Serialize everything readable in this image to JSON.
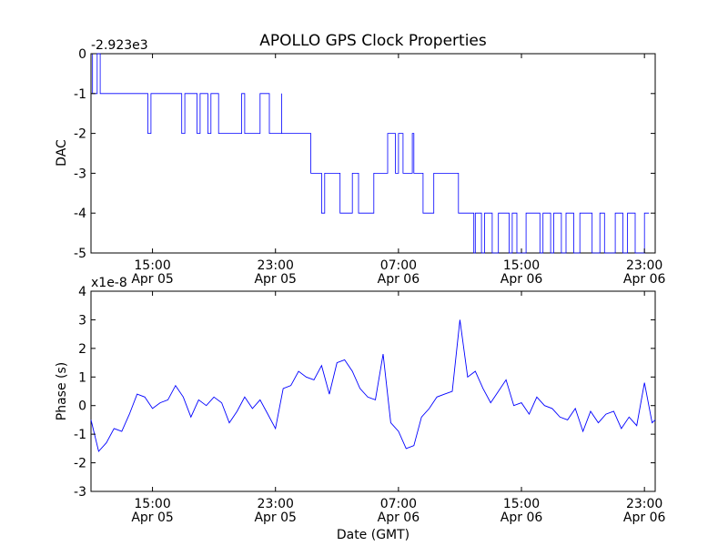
{
  "figure": {
    "title": "APOLLO GPS Clock Properties",
    "colors": {
      "line": "#0000ff",
      "axes": "#000000",
      "background": "#ffffff"
    }
  },
  "chart_data": [
    {
      "type": "line",
      "ylabel": "DAC",
      "offset_label": "-2.923e3",
      "xlabel": "",
      "xlim": [
        "Apr 05 11:00",
        "Apr 06 23:40"
      ],
      "ylim": [
        -5,
        0
      ],
      "yticks": [
        0,
        -1,
        -2,
        -3,
        -4,
        -5
      ],
      "xticks": [
        {
          "time": "15:00",
          "date": "Apr 05"
        },
        {
          "time": "23:00",
          "date": "Apr 05"
        },
        {
          "time": "07:00",
          "date": "Apr 06"
        },
        {
          "time": "15:00",
          "date": "Apr 06"
        },
        {
          "time": "23:00",
          "date": "Apr 06"
        }
      ],
      "grid": false,
      "series": [
        {
          "x_hours_from_apr05_00": [
            11.0,
            11.1,
            11.1,
            11.4,
            11.4,
            11.6,
            11.6,
            12.2,
            12.2,
            14.7,
            14.7,
            14.9,
            14.9,
            16.9,
            16.9,
            17.1,
            17.1,
            17.9,
            17.9,
            18.1,
            18.1,
            18.6,
            18.6,
            18.8,
            18.8,
            19.3,
            19.3,
            20.8,
            20.8,
            21.0,
            21.0,
            22.0,
            22.0,
            22.6,
            22.6,
            23.4,
            23.4,
            23.4,
            23.4,
            25.3,
            25.3,
            25.4,
            25.4,
            26.0,
            26.0,
            26.2,
            26.2,
            27.2,
            27.2,
            28.0,
            28.0,
            28.4,
            28.4,
            29.4,
            29.4,
            30.3,
            30.3,
            30.8,
            30.8,
            31.0,
            31.0,
            31.3,
            31.3,
            31.9,
            31.9,
            32.0,
            32.0,
            32.6,
            32.6,
            33.3,
            33.3,
            34.9,
            34.9,
            35.9,
            35.9,
            36.0,
            36.0,
            36.4,
            36.4,
            36.6,
            36.6,
            37.1,
            37.1,
            37.5,
            37.5,
            38.2,
            38.2,
            38.4,
            38.4,
            38.7,
            38.7,
            39.3,
            39.3,
            40.2,
            40.2,
            40.4,
            40.4,
            40.9,
            40.9,
            41.1,
            41.1,
            41.6,
            41.6,
            41.9,
            41.9,
            42.4,
            42.4,
            42.8,
            42.8,
            43.6,
            43.6,
            44.1,
            44.1,
            44.4,
            44.4,
            45.1,
            45.1,
            45.6,
            45.6,
            45.9,
            45.9,
            46.4,
            46.4,
            47.0,
            47.0,
            47.3,
            47.3,
            47.7
          ],
          "values": [
            0,
            0,
            -1,
            -1,
            0,
            0,
            -1,
            -1,
            -1,
            -1,
            -2,
            -2,
            -1,
            -1,
            -2,
            -2,
            -1,
            -1,
            -2,
            -2,
            -1,
            -1,
            -2,
            -2,
            -1,
            -1,
            -2,
            -2,
            -1,
            -1,
            -2,
            -2,
            -1,
            -1,
            -2,
            -2,
            -1,
            -1,
            -2,
            -2,
            -3,
            -3,
            -3,
            -3,
            -4,
            -4,
            -3,
            -3,
            -4,
            -4,
            -3,
            -3,
            -4,
            -4,
            -3,
            -3,
            -2,
            -2,
            -3,
            -3,
            -2,
            -2,
            -3,
            -3,
            -2,
            -2,
            -3,
            -3,
            -4,
            -4,
            -3,
            -3,
            -4,
            -4,
            -5,
            -5,
            -4,
            -4,
            -5,
            -5,
            -4,
            -4,
            -5,
            -5,
            -4,
            -4,
            -5,
            -5,
            -4,
            -4,
            -5,
            -5,
            -4,
            -4,
            -5,
            -5,
            -4,
            -4,
            -5,
            -5,
            -4,
            -4,
            -5,
            -5,
            -4,
            -4,
            -5,
            -5,
            -4,
            -4,
            -5,
            -5,
            -4,
            -4,
            -5,
            -5,
            -4,
            -4,
            -5,
            -5,
            -4,
            -4,
            -5,
            -5,
            -4,
            -4
          ]
        }
      ]
    },
    {
      "type": "line",
      "ylabel": "Phase (s)",
      "offset_label": "x1e-8",
      "xlabel": "Date (GMT)",
      "xlim": [
        "Apr 05 11:00",
        "Apr 06 23:40"
      ],
      "ylim": [
        -3,
        4
      ],
      "yticks": [
        4,
        3,
        2,
        1,
        0,
        -1,
        -2,
        -3
      ],
      "xticks": [
        {
          "time": "15:00",
          "date": "Apr 05"
        },
        {
          "time": "23:00",
          "date": "Apr 05"
        },
        {
          "time": "07:00",
          "date": "Apr 06"
        },
        {
          "time": "15:00",
          "date": "Apr 06"
        },
        {
          "time": "23:00",
          "date": "Apr 06"
        }
      ],
      "grid": false,
      "series": [
        {
          "x_hours_from_apr05_00": [
            11.0,
            11.5,
            12.0,
            12.5,
            13.0,
            13.5,
            14.0,
            14.5,
            15.0,
            15.5,
            16.0,
            16.5,
            17.0,
            17.5,
            18.0,
            18.5,
            19.0,
            19.5,
            20.0,
            20.5,
            21.0,
            21.5,
            22.0,
            22.5,
            23.0,
            23.5,
            24.0,
            24.5,
            25.0,
            25.5,
            26.0,
            26.5,
            27.0,
            27.5,
            28.0,
            28.5,
            29.0,
            29.5,
            30.0,
            30.5,
            31.0,
            31.5,
            32.0,
            32.5,
            33.0,
            33.5,
            34.0,
            34.5,
            35.0,
            35.5,
            36.0,
            36.5,
            37.0,
            37.5,
            38.0,
            38.5,
            39.0,
            39.5,
            40.0,
            40.5,
            41.0,
            41.5,
            42.0,
            42.5,
            43.0,
            43.5,
            44.0,
            44.5,
            45.0,
            45.5,
            46.0,
            46.5,
            47.0,
            47.5,
            47.7
          ],
          "values": [
            -0.5,
            -1.6,
            -1.3,
            -0.8,
            -0.9,
            -0.3,
            0.4,
            0.3,
            -0.1,
            0.1,
            0.2,
            0.7,
            0.3,
            -0.4,
            0.2,
            0.0,
            0.3,
            0.1,
            -0.6,
            -0.2,
            0.3,
            -0.1,
            0.2,
            -0.3,
            -0.8,
            0.6,
            0.7,
            1.2,
            1.0,
            0.9,
            1.4,
            0.4,
            1.5,
            1.6,
            1.2,
            0.6,
            0.3,
            0.2,
            1.8,
            -0.6,
            -0.9,
            -1.5,
            -1.4,
            -0.4,
            -0.1,
            0.3,
            0.4,
            0.5,
            3.0,
            1.0,
            1.2,
            0.6,
            0.1,
            0.5,
            0.9,
            0.0,
            0.1,
            -0.3,
            0.3,
            0.0,
            -0.1,
            -0.4,
            -0.5,
            -0.1,
            -0.9,
            -0.2,
            -0.6,
            -0.3,
            -0.2,
            -0.8,
            -0.4,
            -0.7,
            0.8,
            -0.6,
            -0.5
          ]
        }
      ]
    }
  ]
}
